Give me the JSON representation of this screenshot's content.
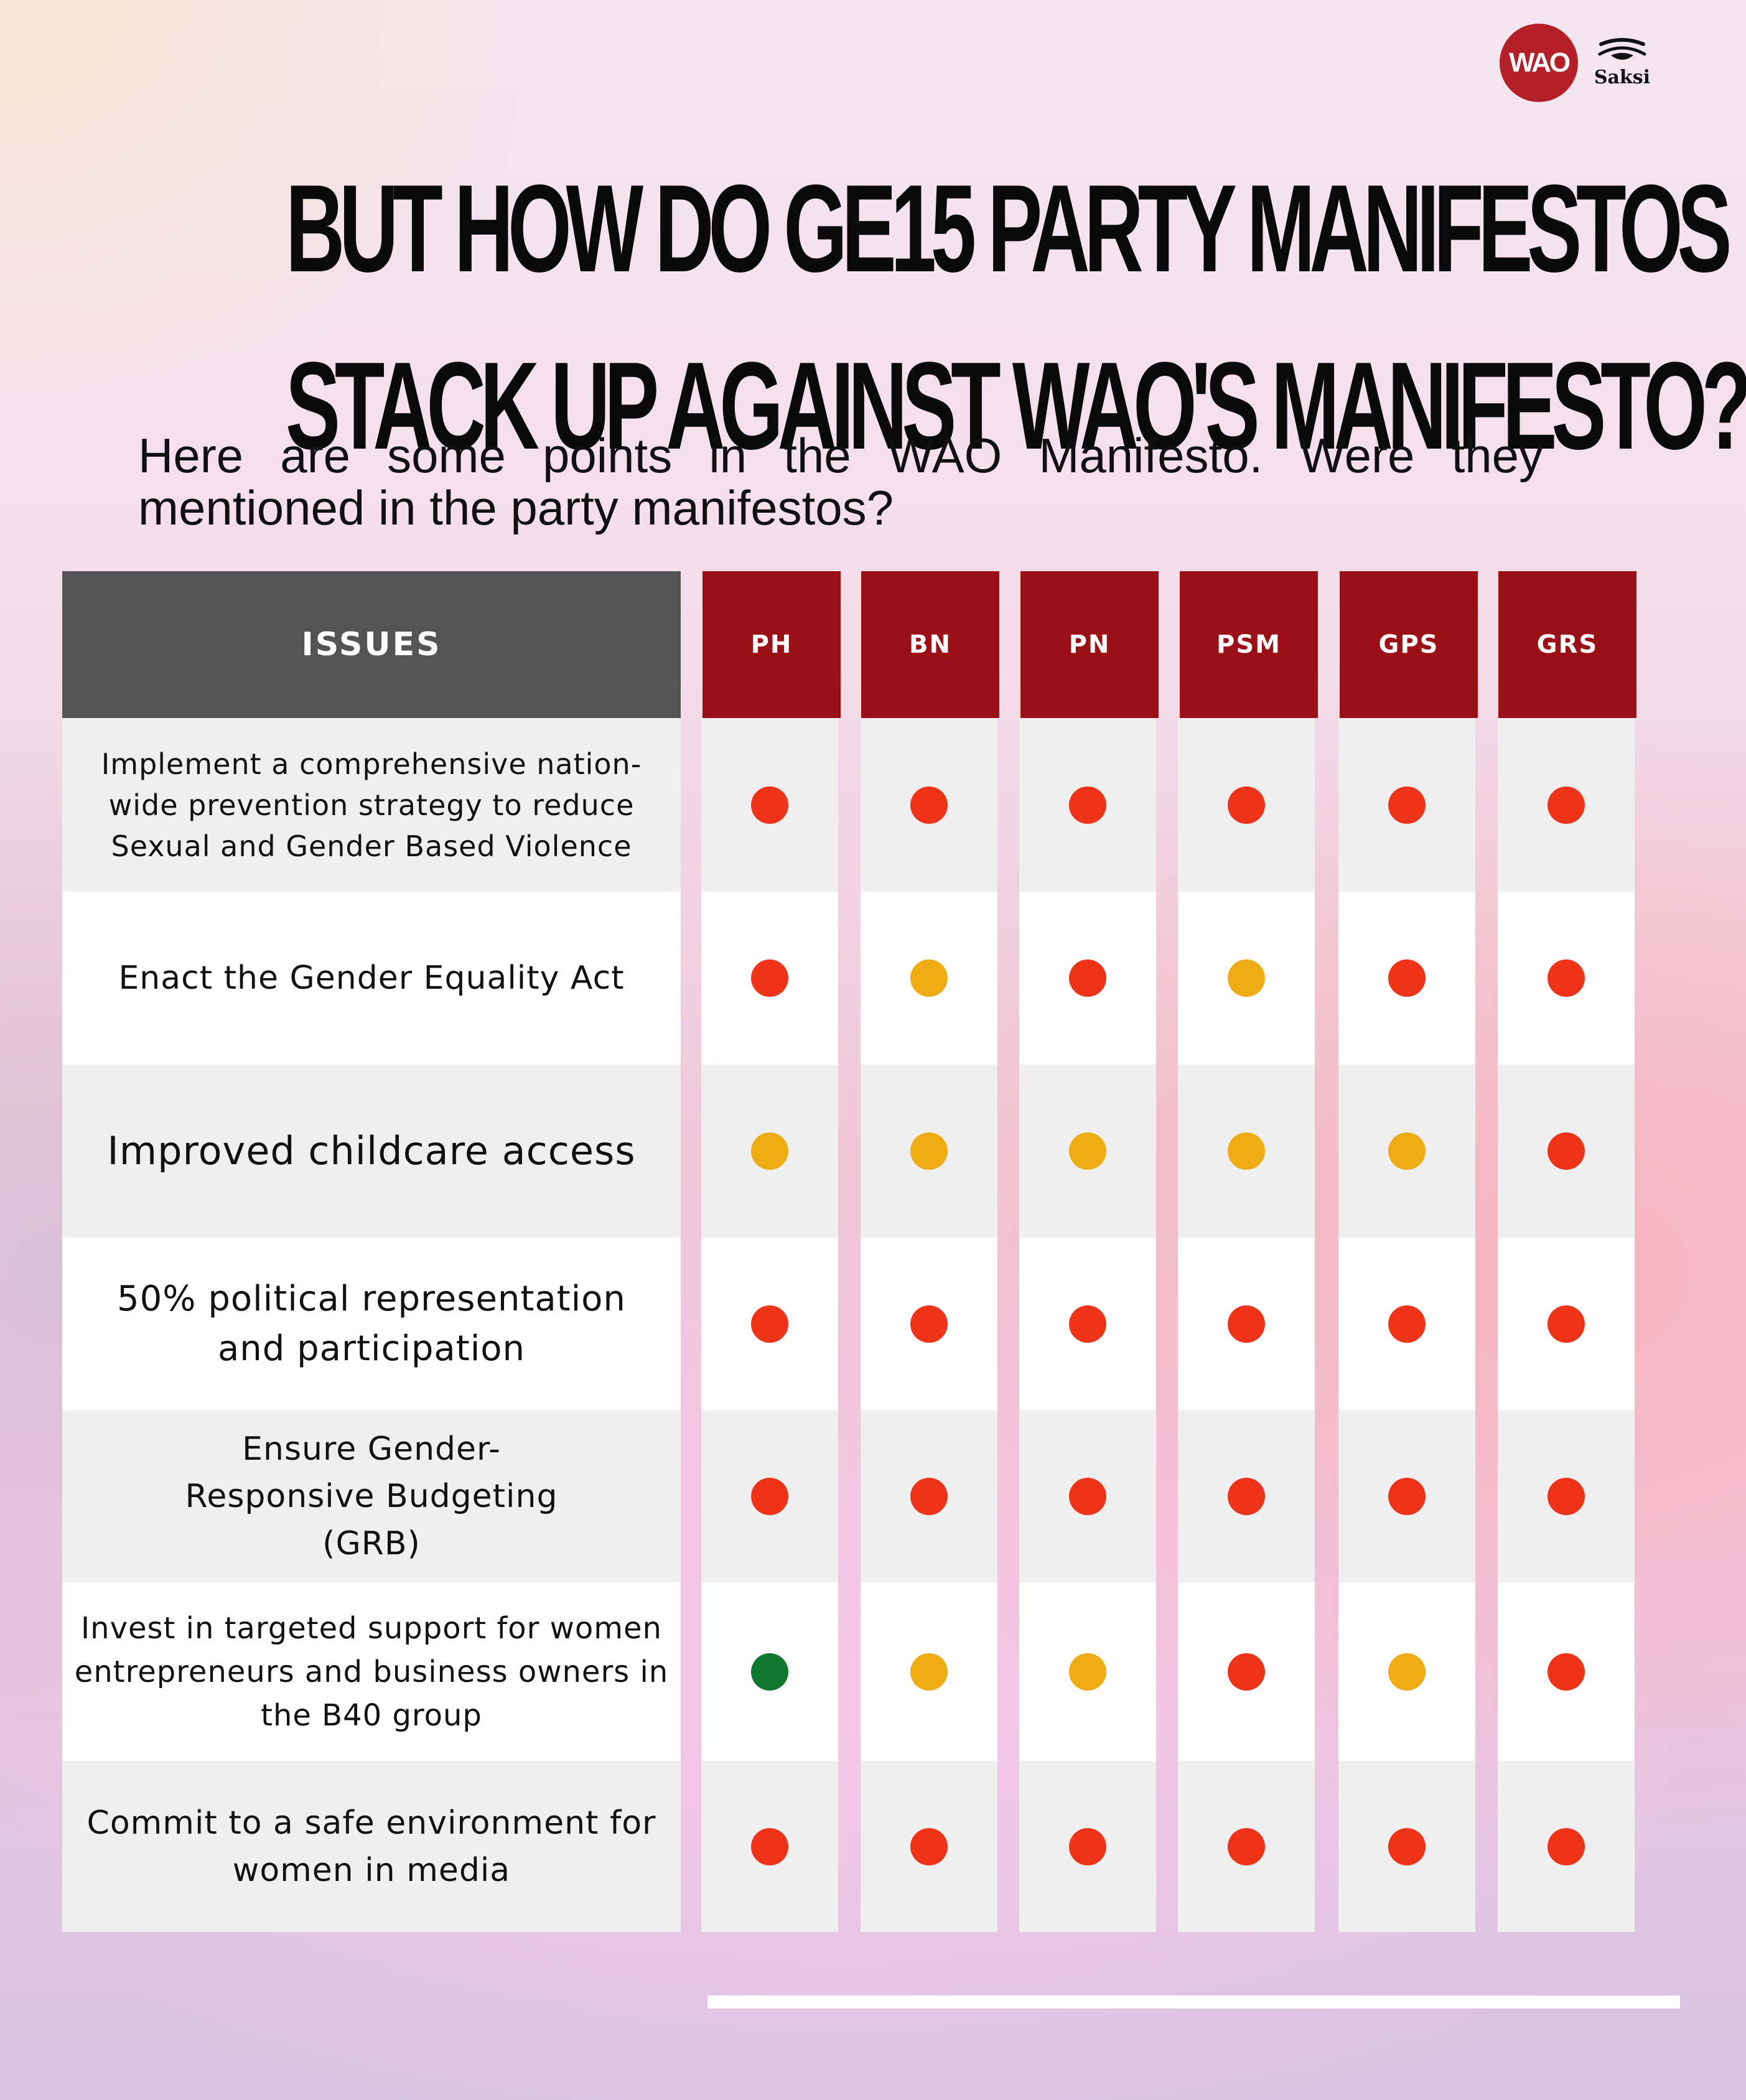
{
  "brand": {
    "wao_logo": "WAO",
    "saksi_logo": "Saksi"
  },
  "title_lines": [
    "BUT HOW DO GE15 PARTY MANIFESTOS",
    "STACK UP AGAINST WAO'S MANIFESTO?"
  ],
  "subtitle": "Here are some points in the WAO Manifesto. Were they mentioned in the party manifestos?",
  "table": {
    "issues_header": "ISSUES",
    "parties": [
      "PH",
      "BN",
      "PN",
      "PSM",
      "GPS",
      "GRS"
    ],
    "status_colors": {
      "red": "#ee3319",
      "yellow": "#eeab13",
      "green": "#11772e"
    },
    "rows": [
      {
        "issue": "Implement a comprehensive nation-wide prevention strategy to reduce Sexual and Gender Based Violence",
        "status": [
          "red",
          "red",
          "red",
          "red",
          "red",
          "red"
        ]
      },
      {
        "issue": "Enact the Gender Equality Act",
        "status": [
          "red",
          "yellow",
          "red",
          "yellow",
          "red",
          "red"
        ]
      },
      {
        "issue": "Improved childcare access",
        "status": [
          "yellow",
          "yellow",
          "yellow",
          "yellow",
          "yellow",
          "red"
        ]
      },
      {
        "issue": "50% political representation and participation",
        "status": [
          "red",
          "red",
          "red",
          "red",
          "red",
          "red"
        ]
      },
      {
        "issue": "Ensure Gender-Responsive Budgeting (GRB)",
        "status": [
          "red",
          "red",
          "red",
          "red",
          "red",
          "red"
        ]
      },
      {
        "issue": "Invest in targeted support for women entrepreneurs and business owners in the B40 group",
        "status": [
          "green",
          "yellow",
          "yellow",
          "red",
          "yellow",
          "red"
        ]
      },
      {
        "issue": "Commit to a safe environment for women in media",
        "status": [
          "red",
          "red",
          "red",
          "red",
          "red",
          "red"
        ]
      }
    ]
  }
}
